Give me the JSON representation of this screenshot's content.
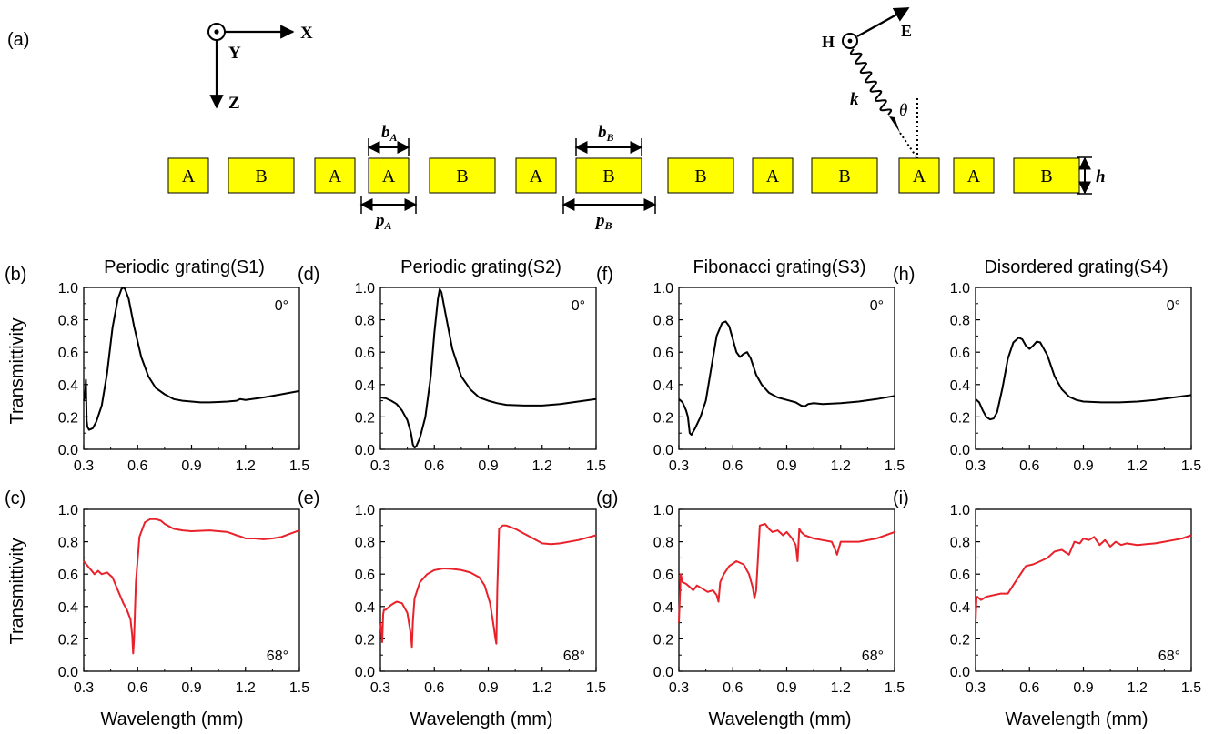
{
  "panel_a": {
    "label": "(a)",
    "axes": {
      "x": "X",
      "y": "Y",
      "z": "Z"
    },
    "wave": {
      "h": "H",
      "e": "E",
      "k": "k",
      "theta": "θ"
    },
    "sequence": [
      "A",
      "B",
      "A",
      "A",
      "B",
      "A",
      "B",
      "B",
      "A",
      "B",
      "A",
      "A",
      "B"
    ],
    "dims": {
      "bA": "b",
      "bA_sub": "A",
      "bB": "b",
      "bB_sub": "B",
      "pA": "p",
      "pA_sub": "A",
      "pB": "p",
      "pB_sub": "B",
      "h": "h"
    }
  },
  "ylabel": "Transmittivity",
  "xlabel": "Wavelength (mm)",
  "chart_data": [
    {
      "type": "line",
      "panel": "(b)",
      "title": "Periodic grating(S1)",
      "angle": "0°",
      "color": "#000000",
      "xlim": [
        0.3,
        1.5
      ],
      "ylim": [
        0.0,
        1.0
      ],
      "xticks": [
        "0.3",
        "0.6",
        "0.9",
        "1.2",
        "1.5"
      ],
      "yticks": [
        "0.0",
        "0.2",
        "0.4",
        "0.6",
        "0.8",
        "1.0"
      ],
      "x": [
        0.3,
        0.305,
        0.31,
        0.312,
        0.314,
        0.316,
        0.32,
        0.33,
        0.35,
        0.37,
        0.4,
        0.43,
        0.46,
        0.49,
        0.51,
        0.52,
        0.53,
        0.55,
        0.58,
        0.62,
        0.66,
        0.7,
        0.75,
        0.8,
        0.85,
        0.9,
        0.95,
        1.0,
        1.05,
        1.1,
        1.15,
        1.17,
        1.2,
        1.3,
        1.4,
        1.5
      ],
      "y": [
        0.3,
        0.32,
        0.38,
        0.43,
        0.3,
        0.18,
        0.14,
        0.12,
        0.13,
        0.17,
        0.27,
        0.47,
        0.75,
        0.93,
        0.99,
        1.0,
        0.99,
        0.93,
        0.76,
        0.57,
        0.45,
        0.38,
        0.34,
        0.31,
        0.3,
        0.295,
        0.29,
        0.29,
        0.292,
        0.295,
        0.3,
        0.31,
        0.305,
        0.32,
        0.34,
        0.36
      ]
    },
    {
      "type": "line",
      "panel": "(d)",
      "title": "Periodic grating(S2)",
      "angle": "0°",
      "color": "#000000",
      "xlim": [
        0.3,
        1.5
      ],
      "ylim": [
        0.0,
        1.0
      ],
      "xticks": [
        "0.3",
        "0.6",
        "0.9",
        "1.2",
        "1.5"
      ],
      "yticks": [
        "0.0",
        "0.2",
        "0.4",
        "0.6",
        "0.8",
        "1.0"
      ],
      "x": [
        0.3,
        0.33,
        0.36,
        0.39,
        0.42,
        0.45,
        0.47,
        0.48,
        0.49,
        0.5,
        0.52,
        0.55,
        0.58,
        0.6,
        0.62,
        0.63,
        0.64,
        0.66,
        0.7,
        0.75,
        0.8,
        0.85,
        0.9,
        0.95,
        1.0,
        1.1,
        1.2,
        1.3,
        1.4,
        1.5
      ],
      "y": [
        0.32,
        0.315,
        0.3,
        0.28,
        0.24,
        0.18,
        0.1,
        0.03,
        0.01,
        0.02,
        0.07,
        0.2,
        0.45,
        0.72,
        0.93,
        0.99,
        0.97,
        0.85,
        0.62,
        0.45,
        0.37,
        0.32,
        0.3,
        0.285,
        0.275,
        0.27,
        0.27,
        0.28,
        0.295,
        0.31
      ]
    },
    {
      "type": "line",
      "panel": "(f)",
      "title": "Fibonacci grating(S3)",
      "angle": "0°",
      "color": "#000000",
      "xlim": [
        0.3,
        1.5
      ],
      "ylim": [
        0.0,
        1.0
      ],
      "xticks": [
        "0.3",
        "0.6",
        "0.9",
        "1.2",
        "1.5"
      ],
      "yticks": [
        "0.0",
        "0.2",
        "0.4",
        "0.6",
        "0.8",
        "1.0"
      ],
      "x": [
        0.3,
        0.32,
        0.34,
        0.35,
        0.36,
        0.37,
        0.39,
        0.42,
        0.45,
        0.48,
        0.51,
        0.54,
        0.56,
        0.58,
        0.6,
        0.62,
        0.64,
        0.66,
        0.68,
        0.7,
        0.73,
        0.76,
        0.8,
        0.85,
        0.9,
        0.95,
        0.98,
        1.0,
        1.02,
        1.05,
        1.1,
        1.2,
        1.3,
        1.4,
        1.5
      ],
      "y": [
        0.31,
        0.29,
        0.24,
        0.2,
        0.1,
        0.09,
        0.13,
        0.2,
        0.3,
        0.5,
        0.7,
        0.78,
        0.79,
        0.76,
        0.68,
        0.6,
        0.57,
        0.59,
        0.6,
        0.56,
        0.46,
        0.4,
        0.35,
        0.32,
        0.305,
        0.29,
        0.27,
        0.265,
        0.28,
        0.285,
        0.28,
        0.285,
        0.295,
        0.31,
        0.33
      ]
    },
    {
      "type": "line",
      "panel": "(h)",
      "title": "Disordered grating(S4)",
      "angle": "0°",
      "color": "#000000",
      "xlim": [
        0.3,
        1.5
      ],
      "ylim": [
        0.0,
        1.0
      ],
      "xticks": [
        "0.3",
        "0.6",
        "0.9",
        "1.2",
        "1.5"
      ],
      "yticks": [
        "0.0",
        "0.2",
        "0.4",
        "0.6",
        "0.8",
        "1.0"
      ],
      "x": [
        0.3,
        0.32,
        0.34,
        0.36,
        0.38,
        0.4,
        0.42,
        0.45,
        0.48,
        0.51,
        0.54,
        0.56,
        0.58,
        0.6,
        0.62,
        0.64,
        0.66,
        0.7,
        0.74,
        0.78,
        0.82,
        0.86,
        0.9,
        1.0,
        1.1,
        1.2,
        1.3,
        1.4,
        1.5
      ],
      "y": [
        0.31,
        0.29,
        0.24,
        0.2,
        0.185,
        0.19,
        0.23,
        0.38,
        0.56,
        0.66,
        0.69,
        0.68,
        0.64,
        0.62,
        0.64,
        0.665,
        0.66,
        0.58,
        0.45,
        0.37,
        0.325,
        0.305,
        0.295,
        0.29,
        0.29,
        0.295,
        0.305,
        0.32,
        0.335
      ]
    },
    {
      "type": "line",
      "panel": "(c)",
      "title": "",
      "angle": "68°",
      "color": "#e8212a",
      "xlim": [
        0.3,
        1.5
      ],
      "ylim": [
        0.0,
        1.0
      ],
      "xticks": [
        "0.3",
        "0.6",
        "0.9",
        "1.2",
        "1.5"
      ],
      "yticks": [
        "0.0",
        "0.2",
        "0.4",
        "0.6",
        "0.8",
        "1.0"
      ],
      "x": [
        0.3,
        0.33,
        0.36,
        0.38,
        0.4,
        0.43,
        0.46,
        0.49,
        0.52,
        0.54,
        0.56,
        0.57,
        0.575,
        0.58,
        0.59,
        0.61,
        0.64,
        0.67,
        0.7,
        0.73,
        0.75,
        0.8,
        0.85,
        0.9,
        1.0,
        1.1,
        1.15,
        1.18,
        1.2,
        1.25,
        1.3,
        1.35,
        1.4,
        1.45,
        1.5
      ],
      "y": [
        0.68,
        0.64,
        0.6,
        0.62,
        0.6,
        0.61,
        0.58,
        0.5,
        0.42,
        0.38,
        0.32,
        0.22,
        0.11,
        0.2,
        0.55,
        0.83,
        0.92,
        0.94,
        0.94,
        0.93,
        0.91,
        0.88,
        0.87,
        0.865,
        0.87,
        0.86,
        0.84,
        0.83,
        0.82,
        0.82,
        0.815,
        0.82,
        0.83,
        0.85,
        0.87
      ]
    },
    {
      "type": "line",
      "panel": "(e)",
      "title": "",
      "angle": "68°",
      "color": "#e8212a",
      "xlim": [
        0.3,
        1.5
      ],
      "ylim": [
        0.0,
        1.0
      ],
      "xticks": [
        "0.3",
        "0.6",
        "0.9",
        "1.2",
        "1.5"
      ],
      "yticks": [
        "0.0",
        "0.2",
        "0.4",
        "0.6",
        "0.8",
        "1.0"
      ],
      "x": [
        0.3,
        0.305,
        0.31,
        0.315,
        0.32,
        0.33,
        0.36,
        0.39,
        0.42,
        0.45,
        0.47,
        0.475,
        0.48,
        0.49,
        0.52,
        0.56,
        0.6,
        0.65,
        0.7,
        0.75,
        0.8,
        0.85,
        0.88,
        0.91,
        0.93,
        0.94,
        0.945,
        0.95,
        0.96,
        0.98,
        1.0,
        1.05,
        1.1,
        1.15,
        1.2,
        1.25,
        1.3,
        1.4,
        1.5
      ],
      "y": [
        0.3,
        0.25,
        0.18,
        0.35,
        0.38,
        0.38,
        0.41,
        0.43,
        0.42,
        0.36,
        0.22,
        0.15,
        0.3,
        0.45,
        0.55,
        0.6,
        0.625,
        0.635,
        0.632,
        0.625,
        0.61,
        0.58,
        0.53,
        0.42,
        0.28,
        0.2,
        0.17,
        0.5,
        0.88,
        0.9,
        0.9,
        0.88,
        0.85,
        0.82,
        0.79,
        0.785,
        0.79,
        0.81,
        0.84
      ]
    },
    {
      "type": "line",
      "panel": "(g)",
      "title": "",
      "angle": "68°",
      "color": "#e8212a",
      "xlim": [
        0.3,
        1.5
      ],
      "ylim": [
        0.0,
        1.0
      ],
      "xticks": [
        "0.3",
        "0.6",
        "0.9",
        "1.2",
        "1.5"
      ],
      "yticks": [
        "0.0",
        "0.2",
        "0.4",
        "0.6",
        "0.8",
        "1.0"
      ],
      "x": [
        0.3,
        0.31,
        0.32,
        0.34,
        0.36,
        0.38,
        0.4,
        0.43,
        0.46,
        0.49,
        0.51,
        0.52,
        0.53,
        0.55,
        0.58,
        0.62,
        0.66,
        0.69,
        0.71,
        0.72,
        0.73,
        0.75,
        0.78,
        0.8,
        0.82,
        0.85,
        0.88,
        0.9,
        0.93,
        0.95,
        0.96,
        0.97,
        0.98,
        1.0,
        1.05,
        1.1,
        1.15,
        1.17,
        1.18,
        1.2,
        1.3,
        1.4,
        1.5
      ],
      "y": [
        0.3,
        0.6,
        0.55,
        0.54,
        0.52,
        0.5,
        0.53,
        0.51,
        0.49,
        0.5,
        0.47,
        0.43,
        0.55,
        0.6,
        0.65,
        0.68,
        0.66,
        0.6,
        0.52,
        0.45,
        0.5,
        0.9,
        0.91,
        0.88,
        0.86,
        0.87,
        0.84,
        0.86,
        0.82,
        0.78,
        0.68,
        0.88,
        0.86,
        0.84,
        0.82,
        0.81,
        0.8,
        0.75,
        0.72,
        0.8,
        0.8,
        0.82,
        0.86
      ]
    },
    {
      "type": "line",
      "panel": "(i)",
      "title": "",
      "angle": "68°",
      "color": "#e8212a",
      "xlim": [
        0.3,
        1.5
      ],
      "ylim": [
        0.0,
        1.0
      ],
      "xticks": [
        "0.3",
        "0.6",
        "0.9",
        "1.2",
        "1.5"
      ],
      "yticks": [
        "0.0",
        "0.2",
        "0.4",
        "0.6",
        "0.8",
        "1.0"
      ],
      "x": [
        0.3,
        0.305,
        0.31,
        0.33,
        0.36,
        0.4,
        0.44,
        0.48,
        0.52,
        0.55,
        0.58,
        0.62,
        0.66,
        0.7,
        0.74,
        0.78,
        0.82,
        0.85,
        0.88,
        0.9,
        0.93,
        0.96,
        0.99,
        1.02,
        1.05,
        1.08,
        1.11,
        1.14,
        1.2,
        1.25,
        1.3,
        1.35,
        1.4,
        1.45,
        1.5
      ],
      "y": [
        0.3,
        0.45,
        0.46,
        0.44,
        0.46,
        0.47,
        0.48,
        0.48,
        0.55,
        0.6,
        0.65,
        0.66,
        0.68,
        0.7,
        0.74,
        0.75,
        0.72,
        0.8,
        0.79,
        0.82,
        0.81,
        0.83,
        0.78,
        0.81,
        0.77,
        0.8,
        0.78,
        0.79,
        0.78,
        0.785,
        0.79,
        0.8,
        0.81,
        0.82,
        0.84
      ]
    }
  ]
}
